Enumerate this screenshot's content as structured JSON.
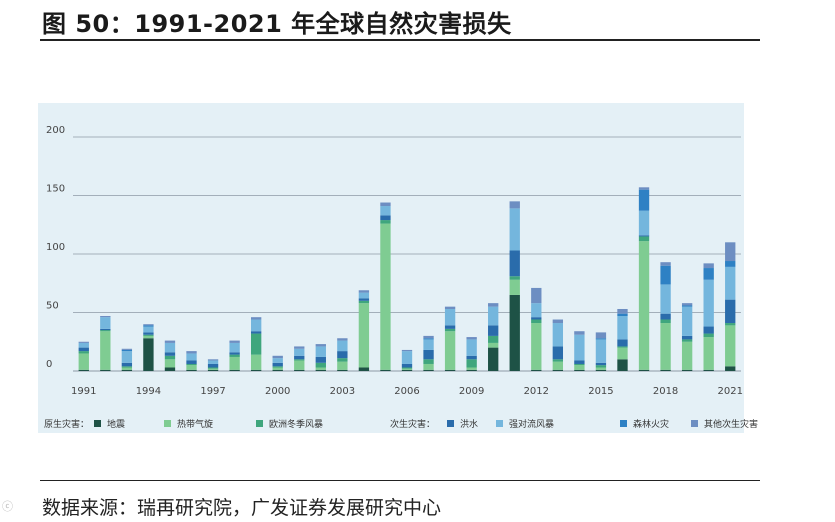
{
  "header": {
    "title": "图 50：1991-2021 年全球自然灾害损失"
  },
  "footer": {
    "source": "数据来源：瑞再研究院，广发证券发展研究中心",
    "watermark": "ⓒ"
  },
  "colors": {
    "earthquake": "#1e5246",
    "cyclone": "#7fcc92",
    "winterstorm": "#3fa67d",
    "flood": "#2a6cab",
    "severe": "#74b6dd",
    "wildfire": "#2e81c4",
    "other": "#6d8ec2",
    "grid": "#8e9aa6",
    "frame": "#e4f0f6"
  },
  "chart_data": {
    "type": "bar",
    "stacked": true,
    "x": [
      1991,
      1992,
      1993,
      1994,
      1995,
      1996,
      1997,
      1998,
      1999,
      2000,
      2001,
      2002,
      2003,
      2004,
      2005,
      2006,
      2007,
      2008,
      2009,
      2010,
      2011,
      2012,
      2013,
      2014,
      2015,
      2016,
      2017,
      2018,
      2019,
      2020,
      2021
    ],
    "xticks": [
      "1991",
      "1994",
      "1997",
      "2000",
      "2003",
      "2006",
      "2009",
      "2012",
      "2015",
      "2018",
      "2021"
    ],
    "yticks": [
      "0",
      "50",
      "100",
      "150",
      "200"
    ],
    "ylim": [
      0,
      200
    ],
    "legend": {
      "primary_label": "原生灾害：",
      "secondary_label": "次生灾害：",
      "primary": [
        {
          "key": "earthquake",
          "name": "地震"
        },
        {
          "key": "cyclone",
          "name": "热带气旋"
        },
        {
          "key": "winterstorm",
          "name": "欧洲冬季风暴"
        }
      ],
      "secondary": [
        {
          "key": "flood",
          "name": "洪水"
        },
        {
          "key": "severe",
          "name": "强对流风暴"
        },
        {
          "key": "wildfire",
          "name": "森林火灾"
        },
        {
          "key": "other",
          "name": "其他次生灾害"
        }
      ]
    },
    "series": [
      {
        "key": "earthquake",
        "name": "地震",
        "values": [
          1,
          1,
          1,
          28,
          3,
          1,
          1,
          1,
          1,
          1,
          1,
          1,
          1,
          3,
          1,
          1,
          1,
          1,
          1,
          20,
          65,
          1,
          1,
          1,
          1,
          10,
          1,
          1,
          1,
          1,
          4
        ]
      },
      {
        "key": "cyclone",
        "name": "热带气旋",
        "values": [
          14,
          33,
          2,
          2,
          7,
          4,
          1,
          11,
          13,
          2,
          8,
          2,
          7,
          55,
          125,
          1,
          5,
          33,
          2,
          4,
          13,
          40,
          7,
          4,
          2,
          10,
          110,
          40,
          24,
          28,
          35
        ]
      },
      {
        "key": "winterstorm",
        "name": "欧洲冬季风暴",
        "values": [
          2,
          1,
          1,
          1,
          3,
          1,
          1,
          2,
          18,
          1,
          1,
          4,
          3,
          2,
          3,
          1,
          4,
          2,
          7,
          6,
          3,
          3,
          2,
          1,
          2,
          1,
          4,
          3,
          2,
          3,
          2
        ]
      },
      {
        "key": "flood",
        "name": "洪水",
        "values": [
          3,
          1,
          3,
          2,
          3,
          3,
          3,
          2,
          2,
          3,
          3,
          5,
          6,
          2,
          4,
          3,
          8,
          3,
          3,
          9,
          22,
          2,
          11,
          3,
          2,
          6,
          1,
          5,
          3,
          6,
          20
        ]
      },
      {
        "key": "severe",
        "name": "强对流风暴",
        "values": [
          4,
          10,
          10,
          5,
          8,
          6,
          3,
          8,
          10,
          4,
          6,
          9,
          9,
          5,
          8,
          11,
          9,
          14,
          14,
          16,
          36,
          12,
          20,
          22,
          20,
          20,
          21,
          25,
          25,
          40,
          28
        ]
      },
      {
        "key": "wildfire",
        "name": "森林火灾",
        "values": [
          0,
          0,
          1,
          1,
          0,
          0,
          0,
          0,
          0,
          0,
          0,
          0,
          0,
          0,
          0,
          0,
          1,
          0,
          0,
          0,
          0,
          0,
          0,
          0,
          1,
          2,
          18,
          16,
          1,
          10,
          5
        ]
      },
      {
        "key": "other",
        "name": "其他次生灾害",
        "values": [
          1,
          1,
          1,
          1,
          2,
          2,
          1,
          2,
          2,
          2,
          2,
          2,
          2,
          2,
          3,
          1,
          2,
          2,
          2,
          3,
          6,
          13,
          3,
          3,
          5,
          4,
          2,
          3,
          2,
          4,
          16
        ]
      }
    ]
  }
}
